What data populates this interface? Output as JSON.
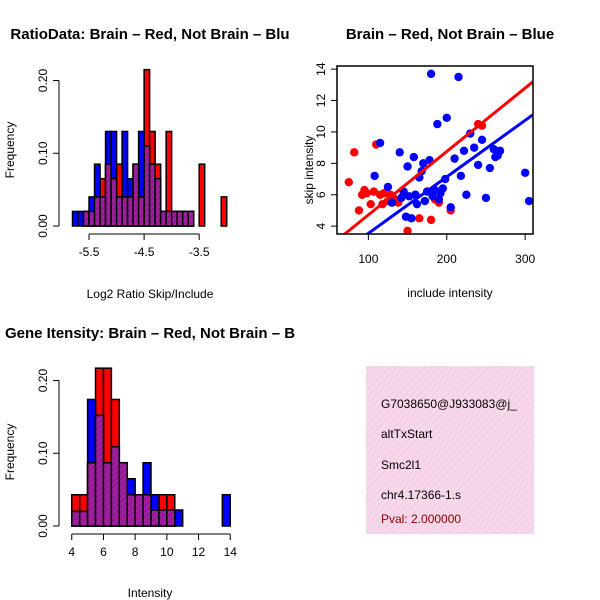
{
  "colors": {
    "red": "#ff0000",
    "blue": "#0000ff",
    "purple": "#a020a0",
    "hatch": "#c71585",
    "info_bg": "#f7d7ea",
    "pval": "#8b0000"
  },
  "chart_data": [
    {
      "id": "ratio",
      "type": "bar",
      "title": "RatioData: Brain – Red, Not Brain – Blu",
      "xlabel": "Log2 Ratio Skip/Include",
      "ylabel": "Frequency",
      "xlim": [
        -5.9,
        -2.85
      ],
      "ylim": [
        0,
        0.22
      ],
      "xticks": [
        -5.5,
        -4.5,
        -3.5
      ],
      "xtick_labels": [
        "-5.5",
        "-4.5",
        "-3.5"
      ],
      "yticks": [
        0.0,
        0.1,
        0.2
      ],
      "ytick_labels": [
        "0.00",
        "0.10",
        "0.20"
      ],
      "bin_width": 0.1,
      "series": [
        {
          "name": "Brain",
          "color": "red",
          "bins": [
            {
              "x0": -5.6,
              "value": 0.02
            },
            {
              "x0": -5.5,
              "value": 0.02
            },
            {
              "x0": -5.4,
              "value": 0.04
            },
            {
              "x0": -5.3,
              "value": 0.065
            },
            {
              "x0": -5.2,
              "value": 0.085
            },
            {
              "x0": -5.1,
              "value": 0.065
            },
            {
              "x0": -5.0,
              "value": 0.085
            },
            {
              "x0": -4.9,
              "value": 0.04
            },
            {
              "x0": -4.8,
              "value": 0.04
            },
            {
              "x0": -4.7,
              "value": 0.085
            },
            {
              "x0": -4.6,
              "value": 0.04
            },
            {
              "x0": -4.5,
              "value": 0.215
            },
            {
              "x0": -4.4,
              "value": 0.13
            },
            {
              "x0": -4.3,
              "value": 0.085
            },
            {
              "x0": -4.2,
              "value": 0.02
            },
            {
              "x0": -4.1,
              "value": 0.13
            },
            {
              "x0": -4.0,
              "value": 0.02
            },
            {
              "x0": -3.9,
              "value": 0.02
            },
            {
              "x0": -3.8,
              "value": 0.02
            },
            {
              "x0": -3.7,
              "value": 0.02
            },
            {
              "x0": -3.5,
              "value": 0.085
            },
            {
              "x0": -3.1,
              "value": 0.04
            }
          ]
        },
        {
          "name": "Not Brain",
          "color": "blue",
          "bins": [
            {
              "x0": -5.8,
              "value": 0.02
            },
            {
              "x0": -5.7,
              "value": 0.02
            },
            {
              "x0": -5.6,
              "value": 0.02
            },
            {
              "x0": -5.5,
              "value": 0.04
            },
            {
              "x0": -5.4,
              "value": 0.085
            },
            {
              "x0": -5.3,
              "value": 0.04
            },
            {
              "x0": -5.2,
              "value": 0.13
            },
            {
              "x0": -5.1,
              "value": 0.13
            },
            {
              "x0": -5.0,
              "value": 0.04
            },
            {
              "x0": -4.9,
              "value": 0.13
            },
            {
              "x0": -4.8,
              "value": 0.065
            },
            {
              "x0": -4.7,
              "value": 0.085
            },
            {
              "x0": -4.6,
              "value": 0.13
            },
            {
              "x0": -4.5,
              "value": 0.11
            },
            {
              "x0": -4.4,
              "value": 0.085
            },
            {
              "x0": -4.3,
              "value": 0.065
            },
            {
              "x0": -4.2,
              "value": 0.02
            },
            {
              "x0": -4.1,
              "value": 0.02
            },
            {
              "x0": -4.0,
              "value": 0.02
            },
            {
              "x0": -3.9,
              "value": 0.02
            },
            {
              "x0": -3.8,
              "value": 0.02
            },
            {
              "x0": -3.7,
              "value": 0.02
            }
          ]
        }
      ]
    },
    {
      "id": "scatter",
      "type": "scatter",
      "title": "Brain – Red, Not Brain – Blue",
      "xlabel": "include intensity",
      "ylabel": "skip intensity",
      "xlim": [
        60,
        310
      ],
      "ylim": [
        3.5,
        14.2
      ],
      "xticks": [
        100,
        200,
        300
      ],
      "xtick_labels": [
        "100",
        "200",
        "300"
      ],
      "yticks": [
        4,
        6,
        8,
        10,
        12,
        14
      ],
      "ytick_labels": [
        "4",
        "6",
        "8",
        "10",
        "12",
        "14"
      ],
      "series": [
        {
          "name": "Brain",
          "color": "red",
          "x": [
            75,
            82,
            88,
            92,
            95,
            98,
            103,
            107,
            110,
            115,
            118,
            120,
            125,
            128,
            132,
            138,
            145,
            150,
            160,
            165,
            175,
            180,
            185,
            190,
            205,
            240,
            245
          ],
          "y": [
            6.8,
            8.7,
            5.0,
            6.0,
            6.3,
            6.1,
            5.4,
            6.2,
            9.2,
            6.0,
            5.4,
            6.1,
            5.6,
            6.0,
            5.8,
            5.5,
            6.1,
            3.7,
            6.0,
            4.5,
            6.2,
            4.4,
            5.7,
            5.5,
            5.0,
            10.5,
            10.4
          ],
          "fit": {
            "x0": 60,
            "y0": 3.1,
            "x1": 310,
            "y1": 13.2
          }
        },
        {
          "name": "Not Brain",
          "color": "blue",
          "x": [
            108,
            115,
            125,
            130,
            140,
            142,
            145,
            148,
            150,
            152,
            155,
            158,
            160,
            162,
            165,
            168,
            170,
            172,
            175,
            178,
            180,
            182,
            185,
            188,
            190,
            192,
            195,
            198,
            200,
            205,
            210,
            215,
            218,
            222,
            225,
            230,
            235,
            240,
            245,
            250,
            255,
            260,
            262,
            265,
            268,
            300,
            305
          ],
          "y": [
            7.2,
            9.3,
            6.5,
            5.5,
            8.7,
            5.8,
            6.2,
            4.6,
            7.8,
            5.9,
            4.5,
            8.4,
            6.0,
            5.4,
            7.1,
            7.5,
            8.0,
            5.6,
            6.2,
            8.2,
            13.7,
            5.9,
            6.3,
            10.5,
            5.7,
            6.1,
            6.4,
            7.0,
            10.9,
            5.2,
            8.3,
            13.5,
            7.2,
            8.8,
            6.0,
            9.9,
            9.0,
            7.9,
            9.5,
            5.8,
            7.7,
            8.9,
            8.4,
            8.5,
            8.8,
            7.4,
            5.6
          ],
          "fit": {
            "x0": 60,
            "y0": 2.1,
            "x1": 310,
            "y1": 11.1
          }
        }
      ]
    },
    {
      "id": "intensity",
      "type": "bar",
      "title": "Gene Itensity: Brain – Red, Not Brain – B",
      "xlabel": "Intensity",
      "ylabel": "Frequency",
      "xlim": [
        3.7,
        14.3
      ],
      "ylim": [
        0,
        0.22
      ],
      "xticks": [
        4,
        6,
        8,
        10,
        12,
        14
      ],
      "xtick_labels": [
        "4",
        "6",
        "8",
        "10",
        "12",
        "14"
      ],
      "yticks": [
        0.0,
        0.1,
        0.2
      ],
      "ytick_labels": [
        "0.00",
        "0.10",
        "0.20"
      ],
      "bin_width": 0.5,
      "series": [
        {
          "name": "Brain",
          "color": "red",
          "bins": [
            {
              "x0": 4.0,
              "value": 0.043
            },
            {
              "x0": 4.5,
              "value": 0.043
            },
            {
              "x0": 5.0,
              "value": 0.087
            },
            {
              "x0": 5.5,
              "value": 0.217
            },
            {
              "x0": 6.0,
              "value": 0.217
            },
            {
              "x0": 6.5,
              "value": 0.174
            },
            {
              "x0": 7.0,
              "value": 0.087
            },
            {
              "x0": 7.5,
              "value": 0.043
            },
            {
              "x0": 8.0,
              "value": 0.043
            },
            {
              "x0": 8.5,
              "value": 0.043
            },
            {
              "x0": 9.0,
              "value": 0.022
            },
            {
              "x0": 9.5,
              "value": 0.043
            },
            {
              "x0": 10.0,
              "value": 0.043
            }
          ]
        },
        {
          "name": "Not Brain",
          "color": "blue",
          "bins": [
            {
              "x0": 4.0,
              "value": 0.02
            },
            {
              "x0": 4.5,
              "value": 0.02
            },
            {
              "x0": 5.0,
              "value": 0.174
            },
            {
              "x0": 5.5,
              "value": 0.152
            },
            {
              "x0": 6.0,
              "value": 0.087
            },
            {
              "x0": 6.5,
              "value": 0.109
            },
            {
              "x0": 7.0,
              "value": 0.087
            },
            {
              "x0": 7.5,
              "value": 0.065
            },
            {
              "x0": 8.0,
              "value": 0.043
            },
            {
              "x0": 8.5,
              "value": 0.087
            },
            {
              "x0": 9.0,
              "value": 0.043
            },
            {
              "x0": 9.5,
              "value": 0.022
            },
            {
              "x0": 10.0,
              "value": 0.022
            },
            {
              "x0": 10.5,
              "value": 0.022
            },
            {
              "x0": 13.5,
              "value": 0.043
            }
          ]
        }
      ]
    }
  ],
  "info": {
    "id": "G7038650@J933083@j_",
    "event": "altTxStart",
    "gene": "Smc2l1",
    "location": "chr4.17366-1.s",
    "pval": "Pval: 2.000000"
  }
}
